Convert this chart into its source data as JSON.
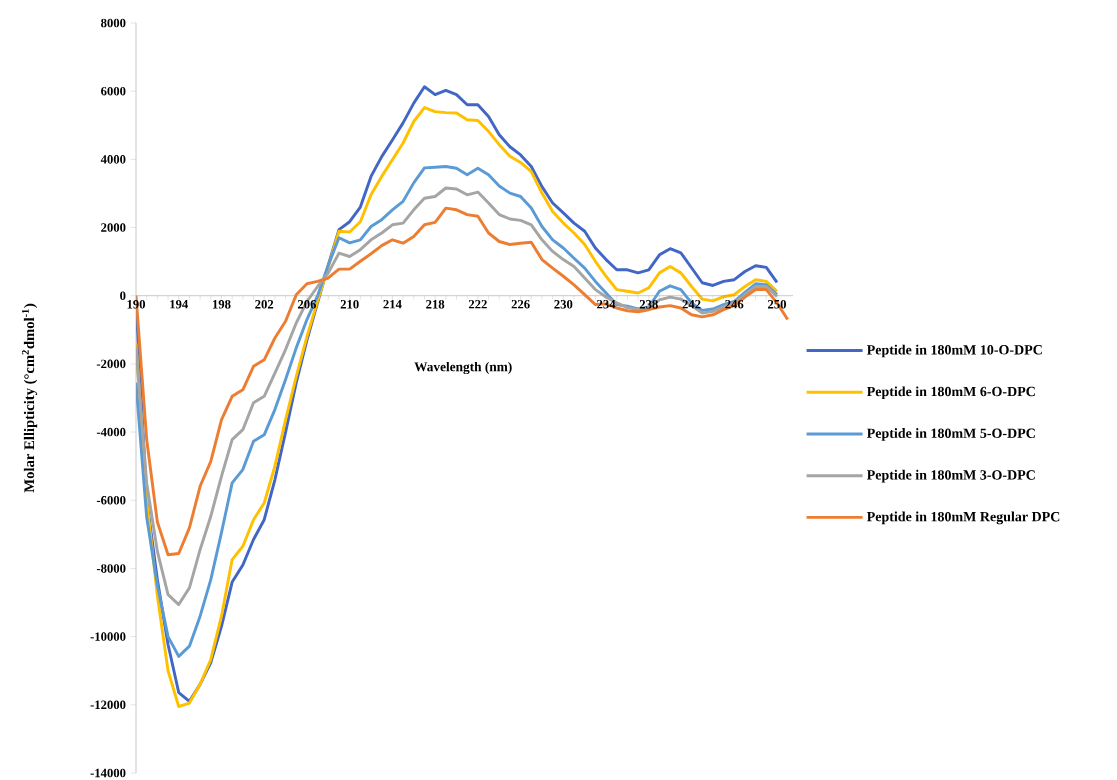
{
  "chart_data": {
    "type": "line",
    "xlabel": "Wavelength (nm)",
    "ylabel": "Molar Ellipticity (°cm$^{2}$dmol$^{-1}$)",
    "x": [
      190,
      191,
      192,
      193,
      194,
      195,
      196,
      197,
      198,
      199,
      200,
      201,
      202,
      203,
      204,
      205,
      206,
      207,
      208,
      209,
      210,
      211,
      212,
      213,
      214,
      215,
      216,
      217,
      218,
      219,
      220,
      221,
      222,
      223,
      224,
      225,
      226,
      227,
      228,
      229,
      230,
      231,
      232,
      233,
      234,
      235,
      236,
      237,
      238,
      239,
      240,
      241,
      242,
      243,
      244,
      245,
      246,
      247,
      248,
      249,
      250,
      251
    ],
    "xlim": [
      190,
      251.5
    ],
    "xticks": [
      190,
      194,
      198,
      202,
      206,
      210,
      214,
      218,
      222,
      226,
      230,
      234,
      238,
      242,
      246,
      250
    ],
    "ylim": [
      -14000,
      8000
    ],
    "yticks": [
      -14000,
      -12000,
      -10000,
      -8000,
      -6000,
      -4000,
      -2000,
      0,
      2000,
      4000,
      6000,
      8000
    ],
    "legend": "right",
    "marker": "none",
    "line_style": "solid",
    "series": [
      {
        "name": "Peptide in 180mM 10-O-DPC",
        "color": "#4166c5",
        "values": [
          -200,
          -5980,
          -8330,
          -10230,
          -11640,
          -11900,
          -11400,
          -10760,
          -9700,
          -8400,
          -7900,
          -7150,
          -6570,
          -5400,
          -4000,
          -2550,
          -1300,
          -200,
          900,
          1940,
          2170,
          2600,
          3500,
          4080,
          4570,
          5070,
          5650,
          6130,
          5900,
          6020,
          5900,
          5600,
          5600,
          5260,
          4720,
          4370,
          4130,
          3790,
          3200,
          2720,
          2430,
          2130,
          1890,
          1400,
          1060,
          760,
          760,
          670,
          760,
          1200,
          1380,
          1260,
          820,
          380,
          300,
          420,
          470,
          710,
          880,
          830,
          390,
          null
        ]
      },
      {
        "name": "Peptide in 180mM 6-O-DPC",
        "color": "#ffc000",
        "values": [
          -1400,
          -6000,
          -8800,
          -11000,
          -12050,
          -11950,
          -11400,
          -10670,
          -9400,
          -7740,
          -7350,
          -6570,
          -6080,
          -5000,
          -3640,
          -2370,
          -1200,
          -150,
          850,
          1890,
          1870,
          2170,
          2960,
          3500,
          3990,
          4480,
          5110,
          5520,
          5400,
          5370,
          5360,
          5160,
          5140,
          4820,
          4430,
          4090,
          3910,
          3640,
          3010,
          2470,
          2130,
          1840,
          1500,
          1010,
          570,
          180,
          130,
          80,
          230,
          670,
          860,
          670,
          270,
          -100,
          -150,
          -30,
          30,
          270,
          470,
          420,
          130,
          null
        ]
      },
      {
        "name": "Peptide in 180mM 5-O-DPC",
        "color": "#5b9bd5",
        "values": [
          -2550,
          -6500,
          -8500,
          -10000,
          -10580,
          -10280,
          -9400,
          -8330,
          -6950,
          -5490,
          -5100,
          -4270,
          -4080,
          -3340,
          -2460,
          -1530,
          -700,
          0,
          900,
          1700,
          1550,
          1640,
          2030,
          2230,
          2520,
          2770,
          3310,
          3750,
          3770,
          3790,
          3740,
          3550,
          3740,
          3550,
          3220,
          3010,
          2910,
          2570,
          2030,
          1640,
          1400,
          1100,
          810,
          420,
          80,
          -260,
          -310,
          -390,
          -330,
          130,
          290,
          180,
          -210,
          -430,
          -390,
          -260,
          -170,
          100,
          350,
          320,
          30,
          null
        ]
      },
      {
        "name": "Peptide in 180mM 3-O-DPC",
        "color": "#a5a5a5",
        "values": [
          -1500,
          -5500,
          -7500,
          -8770,
          -9060,
          -8570,
          -7450,
          -6470,
          -5300,
          -4220,
          -3930,
          -3140,
          -2950,
          -2270,
          -1580,
          -800,
          -170,
          270,
          670,
          1250,
          1150,
          1350,
          1640,
          1840,
          2080,
          2130,
          2520,
          2860,
          2910,
          3160,
          3130,
          2960,
          3040,
          2720,
          2380,
          2250,
          2210,
          2080,
          1640,
          1300,
          1060,
          860,
          520,
          180,
          -40,
          -210,
          -350,
          -400,
          -360,
          -120,
          -40,
          -100,
          -290,
          -510,
          -460,
          -330,
          -210,
          30,
          270,
          270,
          -20,
          null
        ]
      },
      {
        "name": "Peptide in 180mM Regular DPC",
        "color": "#ed7d31",
        "values": [
          0,
          -4220,
          -6640,
          -7600,
          -7560,
          -6810,
          -5590,
          -4860,
          -3640,
          -2950,
          -2760,
          -2070,
          -1880,
          -1240,
          -750,
          30,
          350,
          420,
          520,
          780,
          780,
          1010,
          1230,
          1470,
          1640,
          1540,
          1740,
          2080,
          2150,
          2570,
          2520,
          2380,
          2330,
          1840,
          1590,
          1500,
          1540,
          1570,
          1060,
          810,
          570,
          320,
          30,
          -260,
          -240,
          -360,
          -440,
          -470,
          -410,
          -330,
          -290,
          -360,
          -560,
          -620,
          -560,
          -410,
          -290,
          -40,
          180,
          180,
          -210,
          -700
        ]
      }
    ]
  }
}
